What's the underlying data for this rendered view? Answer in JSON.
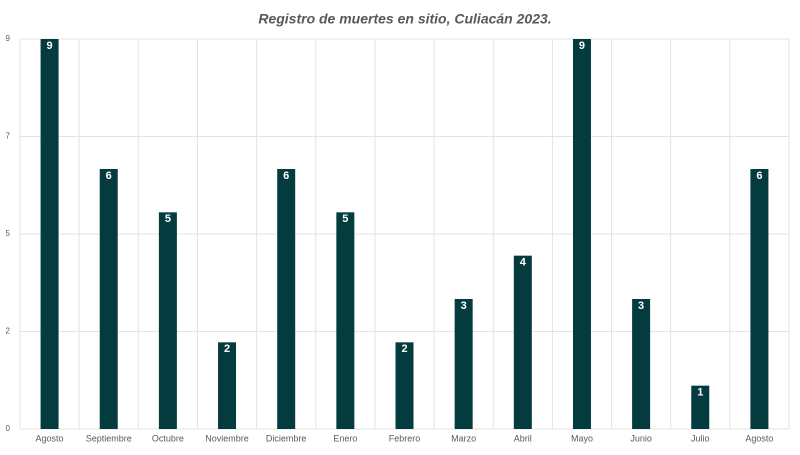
{
  "chart_data": {
    "type": "bar",
    "title": "Registro de muertes en sitio, Culiacán 2023.",
    "categories": [
      "Agosto",
      "Septiembre",
      "Octubre",
      "Noviembre",
      "Diciembre",
      "Enero",
      "Febrero",
      "Marzo",
      "Abril",
      "Mayo",
      "Junio",
      "Julio",
      "Agosto"
    ],
    "values": [
      9,
      6,
      5,
      2,
      6,
      5,
      2,
      3,
      4,
      9,
      3,
      1,
      6
    ],
    "color": "#033b3f",
    "ylim": [
      0,
      9
    ],
    "yticks": [
      0,
      {
        "value": 2.25,
        "label": "2"
      },
      {
        "value": 4.5,
        "label": "5"
      },
      {
        "value": 6.75,
        "label": "7"
      },
      9
    ],
    "grid": true
  }
}
